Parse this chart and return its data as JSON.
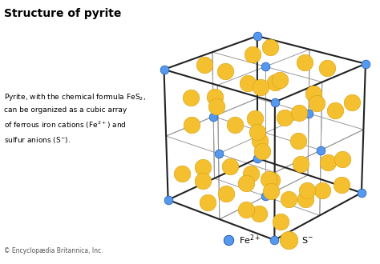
{
  "title": "Structure of pyrite",
  "fe_color": "#5599ee",
  "s_color": "#f5c030",
  "s_edge_color": "#d4a010",
  "fe_edge_color": "#2255aa",
  "background_color": "#ffffff",
  "cube_color_outer": "#222222",
  "cube_color_inner": "#999999",
  "fe_size": 60,
  "s_size": 220,
  "figsize": [
    4.74,
    3.3
  ],
  "dpi": 100,
  "elev": 22,
  "azim": -50
}
